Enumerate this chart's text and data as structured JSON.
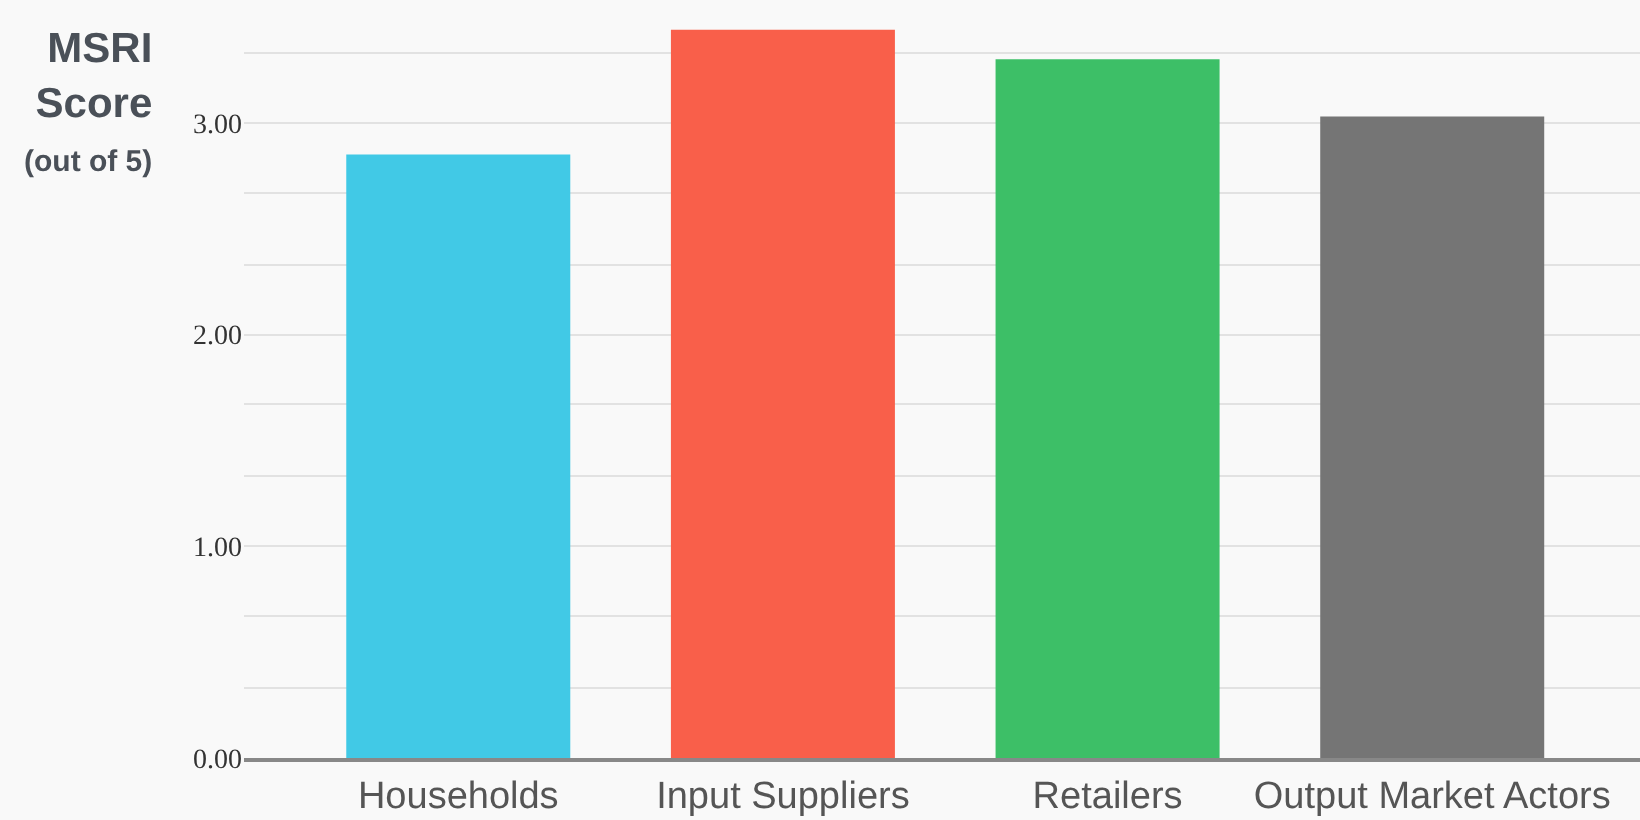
{
  "chart_data": {
    "type": "bar",
    "ylabel": "MSRI\nScore\n(out of 5)",
    "categories": [
      "Households",
      "Input Suppliers",
      "Retailers",
      "Output Market Actors"
    ],
    "values": [
      2.85,
      3.44,
      3.3,
      3.03
    ],
    "colors": [
      "#41c9e6",
      "#f95f4a",
      "#3dbf67",
      "#757575"
    ],
    "ylim": [
      0,
      3.58
    ],
    "yticks": [
      {
        "value": 0,
        "label": "0.00"
      },
      {
        "value": 0.33,
        "label": null
      },
      {
        "value": 0.67,
        "label": null
      },
      {
        "value": 1,
        "label": "1.00"
      },
      {
        "value": 1.33,
        "label": null
      },
      {
        "value": 1.67,
        "label": null
      },
      {
        "value": 2,
        "label": "2.00"
      },
      {
        "value": 2.33,
        "label": null
      },
      {
        "value": 2.67,
        "label": null
      },
      {
        "value": 3,
        "label": "3.00"
      },
      {
        "value": 3.33,
        "label": null
      }
    ],
    "grid": "y"
  }
}
